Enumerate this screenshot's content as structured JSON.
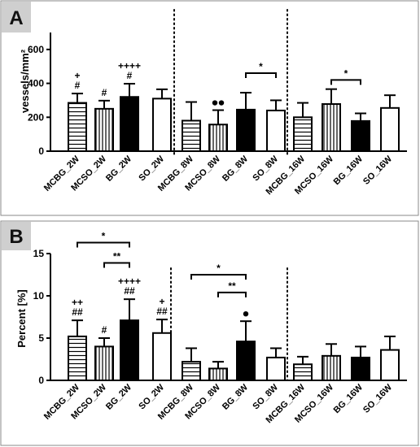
{
  "chart_data": [
    {
      "panel": "A",
      "type": "bar",
      "ylabel": "vessels/mm²",
      "ylim": [
        0,
        700
      ],
      "yticks": [
        0,
        200,
        400,
        600
      ],
      "categories": [
        "MCBG_2W",
        "MCSO_2W",
        "BG_2W",
        "SO_2W",
        "MCBG_8W",
        "MCSO_8W",
        "BG_8W",
        "SO_8W",
        "MCBG_16W",
        "MCSO_16W",
        "BG_16W",
        "SO_16W"
      ],
      "values": [
        285,
        250,
        320,
        310,
        180,
        157,
        245,
        240,
        200,
        278,
        178,
        255
      ],
      "errors": [
        55,
        48,
        78,
        55,
        110,
        85,
        100,
        60,
        85,
        88,
        45,
        75
      ],
      "fill": [
        "hstripe",
        "vstripe",
        "solid",
        "white",
        "hstripe",
        "vstripe",
        "solid",
        "white",
        "hstripe",
        "vstripe",
        "solid",
        "white"
      ],
      "annotations": [
        {
          "index": 0,
          "lines": [
            "+",
            "#"
          ]
        },
        {
          "index": 1,
          "lines": [
            "#"
          ]
        },
        {
          "index": 2,
          "lines": [
            "++++",
            "#"
          ]
        },
        {
          "index": 5,
          "lines": [
            "••"
          ]
        }
      ],
      "brackets": [
        {
          "from": 6,
          "to": 7,
          "label": "*",
          "level": 460
        },
        {
          "from": 9,
          "to": 10,
          "label": "*",
          "level": 420
        }
      ]
    },
    {
      "panel": "B",
      "type": "bar",
      "ylabel": "Percent [%]",
      "ylim": [
        0,
        15
      ],
      "yticks": [
        0,
        5,
        10,
        15
      ],
      "categories": [
        "MCBG_2W",
        "MCSO_2W",
        "BG_2W",
        "SO_2W",
        "MCBG_8W",
        "MCSO_8W",
        "BG_8W",
        "SO_8W",
        "MCBG_16W",
        "MCSO_16W",
        "BG_16W",
        "SO_16W"
      ],
      "values": [
        5.2,
        4.0,
        7.1,
        5.6,
        2.2,
        1.4,
        4.6,
        2.7,
        1.9,
        2.9,
        2.7,
        3.6
      ],
      "errors": [
        1.9,
        1.0,
        2.5,
        1.6,
        1.6,
        0.8,
        2.4,
        1.1,
        0.9,
        1.4,
        1.3,
        1.6
      ],
      "fill": [
        "hstripe",
        "vstripe",
        "solid",
        "white",
        "hstripe",
        "vstripe",
        "solid",
        "white",
        "hstripe",
        "vstripe",
        "solid",
        "white"
      ],
      "annotations": [
        {
          "index": 0,
          "lines": [
            "++",
            "##"
          ]
        },
        {
          "index": 1,
          "lines": [
            "#"
          ]
        },
        {
          "index": 2,
          "lines": [
            "++++",
            "##"
          ]
        },
        {
          "index": 3,
          "lines": [
            "+",
            "##"
          ]
        },
        {
          "index": 6,
          "lines": [
            "•"
          ]
        }
      ],
      "brackets": [
        {
          "from": 0,
          "to": 2,
          "label": "*",
          "level": 16.3
        },
        {
          "from": 1,
          "to": 2,
          "label": "**",
          "level": 13.9
        },
        {
          "from": 4,
          "to": 6,
          "label": "*",
          "level": 12.5
        },
        {
          "from": 5,
          "to": 6,
          "label": "**",
          "level": 10.4
        }
      ]
    }
  ]
}
